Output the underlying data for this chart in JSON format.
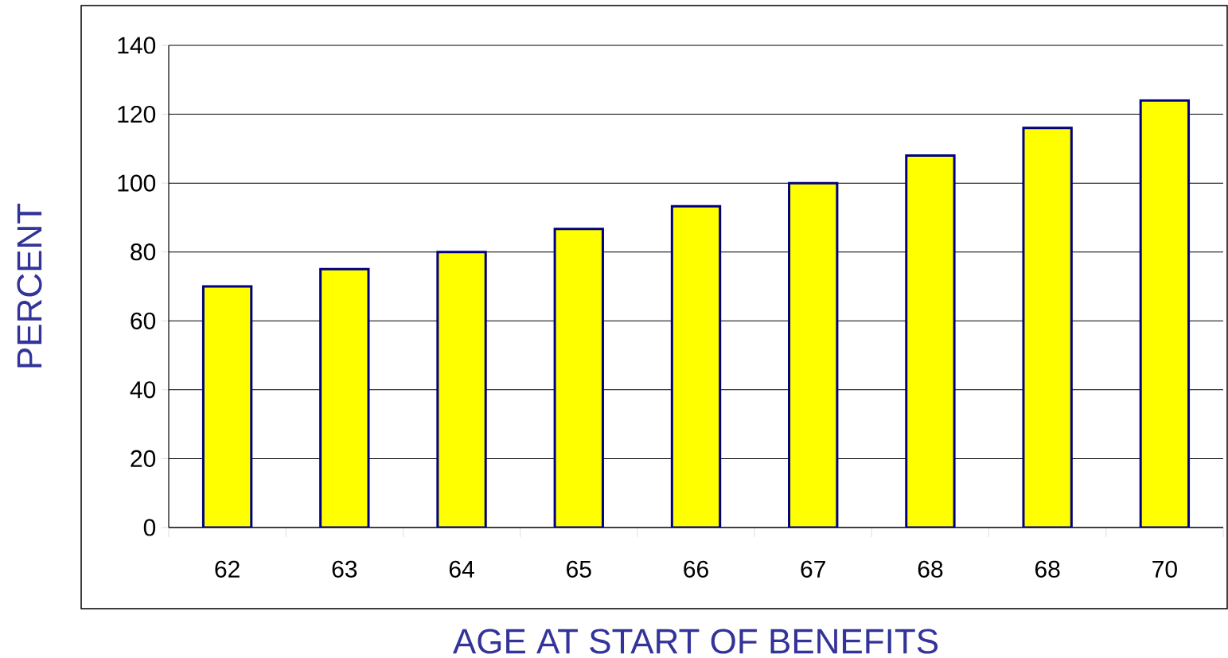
{
  "chart_data": {
    "type": "bar",
    "xlabel": "AGE AT START OF BENEFITS",
    "ylabel": "PERCENT",
    "categories": [
      "62",
      "63",
      "64",
      "65",
      "66",
      "67",
      "68",
      "68",
      "70"
    ],
    "values": [
      70,
      75,
      80,
      86.7,
      93.3,
      100,
      108,
      116,
      124
    ],
    "color": "#ffff00",
    "ylim": [
      0,
      140
    ],
    "yticks": [
      0,
      20,
      40,
      60,
      80,
      100,
      120,
      140
    ],
    "grid": "y"
  }
}
